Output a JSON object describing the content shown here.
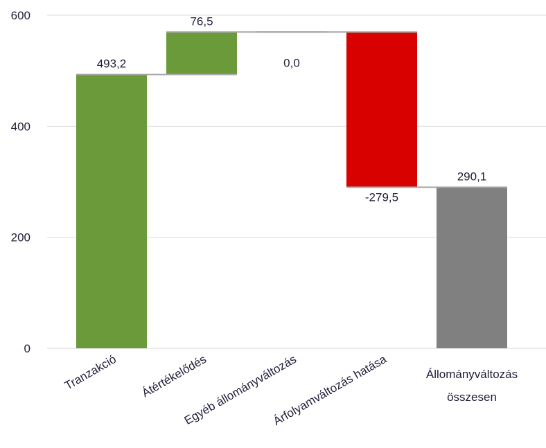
{
  "chart_data": {
    "type": "bar",
    "subtype": "waterfall",
    "title": "",
    "xlabel": "",
    "ylabel": "",
    "ylim": [
      0,
      600
    ],
    "yticks": [
      0,
      200,
      400,
      600
    ],
    "ytick_labels": [
      "0",
      "200",
      "400",
      "600"
    ],
    "grid": true,
    "legend": "none",
    "categories": [
      "Tranzakció",
      "Átértékelődés",
      "Egyéb állományváltozás",
      "Árfolyamváltozás hatása",
      "Állományváltozás összesen"
    ],
    "category_label_lines": [
      [
        "Tranzakció"
      ],
      [
        "Átértékelődés"
      ],
      [
        "Egyéb állományváltozás"
      ],
      [
        "Árfolyamváltozás hatása"
      ],
      [
        "Állományváltozás",
        "összesen"
      ]
    ],
    "category_label_rotated": [
      true,
      true,
      true,
      true,
      false
    ],
    "values": [
      493.2,
      76.5,
      0.0,
      -279.5,
      290.1
    ],
    "value_labels": [
      "493,2",
      "76,5",
      "0,0",
      "-279,5",
      "290,1"
    ],
    "is_total": [
      false,
      false,
      false,
      false,
      true
    ],
    "colors": {
      "increase": "#6A9A3A",
      "decrease": "#D90000",
      "total": "#808080",
      "connector": "#A6A6A6",
      "grid": "#D9D9D9",
      "text": "#1F1F3A"
    }
  }
}
